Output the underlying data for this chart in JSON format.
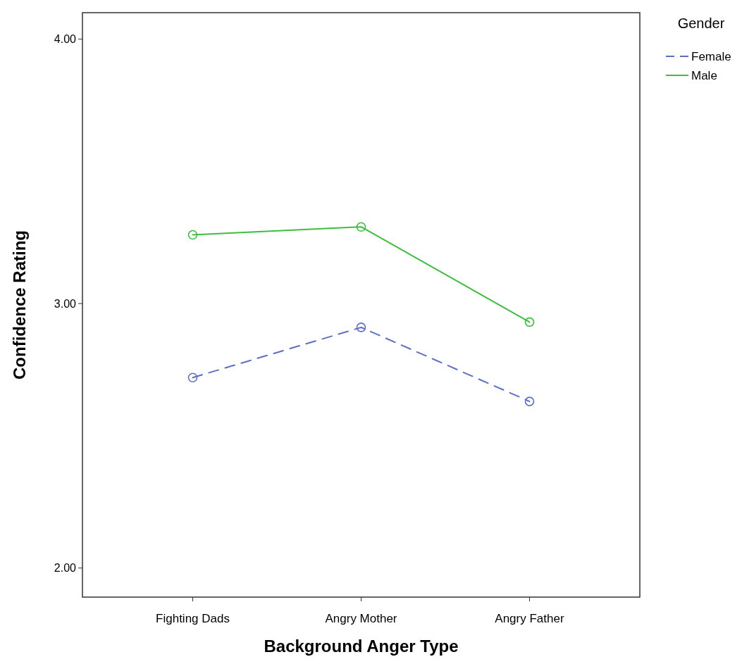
{
  "chart_data": {
    "type": "line",
    "xlabel": "Background Anger Type",
    "ylabel": "Confidence Rating",
    "legend_title": "Gender",
    "categories": [
      "Fighting Dads",
      "Angry Mother",
      "Angry Father"
    ],
    "series": [
      {
        "name": "Female",
        "color": "#5b6fc9",
        "line_style": "dashed",
        "values": [
          2.72,
          2.91,
          2.63
        ]
      },
      {
        "name": "Male",
        "color": "#3cbf3c",
        "line_style": "solid",
        "values": [
          3.26,
          3.29,
          2.93
        ]
      }
    ],
    "ylim": [
      1.89,
      4.1
    ],
    "yticks": [
      {
        "value": 2,
        "label": "2.00"
      },
      {
        "value": 3,
        "label": "3.00"
      },
      {
        "value": 4,
        "label": "4.00"
      }
    ],
    "marker": "circle",
    "grid": false,
    "legend": "top right"
  }
}
